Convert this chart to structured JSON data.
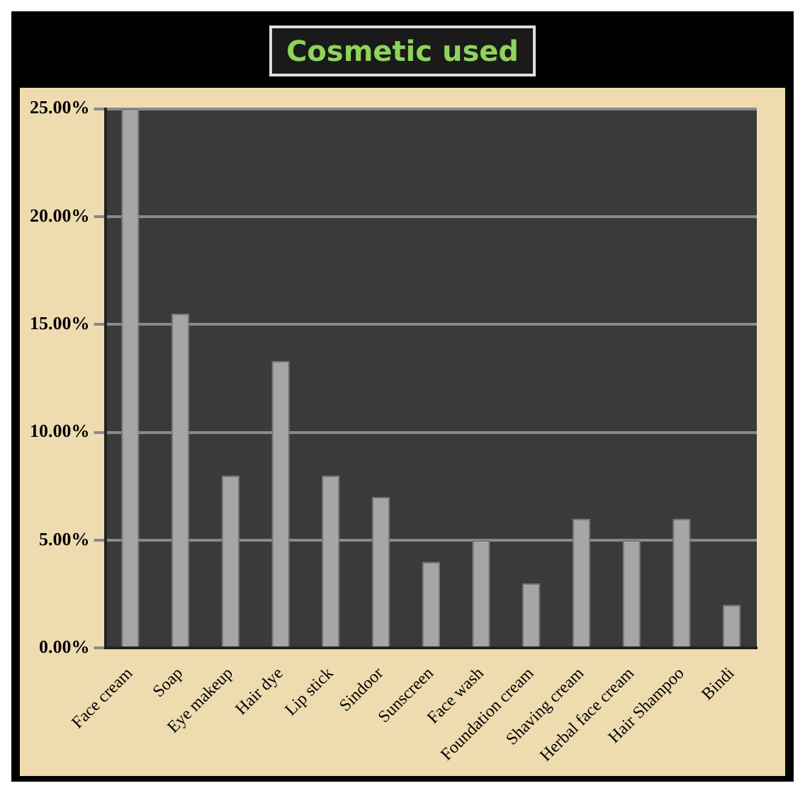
{
  "chart_data": {
    "type": "bar",
    "title": "Cosmetic used",
    "categories": [
      "Face cream",
      "Soap",
      "Eye makeup",
      "Hair dye",
      "Lip stick",
      "Sindoor",
      "Sunscreen",
      "Face wash",
      "Foundation cream",
      "Shaving cream",
      "Herbal face cream",
      "Hair Shampoo",
      "Bindi"
    ],
    "values": [
      25,
      15.5,
      8,
      13.3,
      8,
      7,
      4,
      5,
      3,
      6,
      5,
      6,
      2
    ],
    "color": "#a6a6a6",
    "ylim": [
      0,
      25
    ],
    "yticks": [
      {
        "value": 0,
        "label": "0.00%"
      },
      {
        "value": 5,
        "label": "5.00%"
      },
      {
        "value": 10,
        "label": "10.00%"
      },
      {
        "value": 15,
        "label": "15.00%"
      },
      {
        "value": 20,
        "label": "20.00%"
      },
      {
        "value": 25,
        "label": "25.00%"
      }
    ],
    "grid": "y"
  }
}
